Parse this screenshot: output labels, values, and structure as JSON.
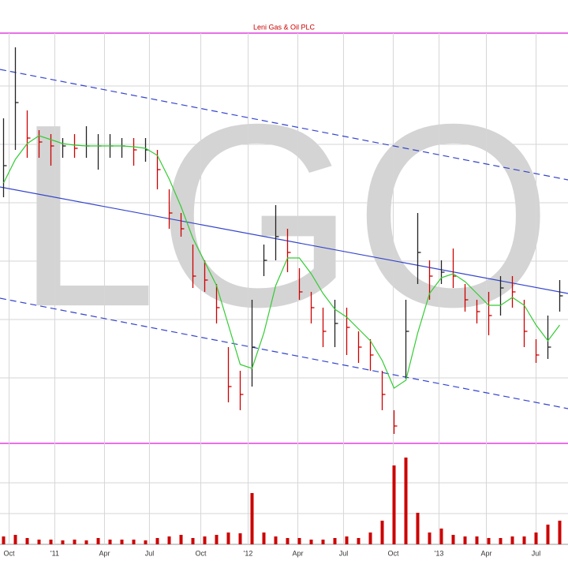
{
  "chart_data": {
    "type": "ohlc",
    "title": "Leni Gas & Oil PLC",
    "watermark": "LGO",
    "xlim": [
      -0.3,
      47.7
    ],
    "xticks": [
      {
        "value": 0.47,
        "label": "Oct"
      },
      {
        "value": 4.33,
        "label": "'11"
      },
      {
        "value": 8.53,
        "label": "Apr"
      },
      {
        "value": 12.33,
        "label": "Jul"
      },
      {
        "value": 16.67,
        "label": "Oct"
      },
      {
        "value": 20.67,
        "label": "'12"
      },
      {
        "value": 24.87,
        "label": "Apr"
      },
      {
        "value": 28.73,
        "label": "Jul"
      },
      {
        "value": 32.93,
        "label": "Oct"
      },
      {
        "value": 36.8,
        "label": "'13"
      },
      {
        "value": 40.8,
        "label": "Apr"
      },
      {
        "value": 45,
        "label": "Jul"
      }
    ],
    "ylim": [
      0,
      520
    ],
    "high": [
      412,
      502,
      422,
      397,
      392,
      387,
      392,
      402,
      392,
      392,
      387,
      387,
      387,
      372,
      322,
      292,
      252,
      232,
      202,
      122,
      92,
      182,
      252,
      302,
      272,
      222,
      192,
      172,
      182,
      172,
      142,
      132,
      92,
      42,
      182,
      292,
      232,
      232,
      247,
      202,
      182,
      192,
      212,
      212,
      182,
      132,
      162,
      207
    ],
    "low": [
      312,
      372,
      362,
      362,
      352,
      362,
      362,
      362,
      347,
      362,
      362,
      352,
      357,
      322,
      272,
      262,
      197,
      192,
      152,
      52,
      42,
      72,
      212,
      232,
      217,
      182,
      152,
      122,
      122,
      112,
      102,
      92,
      42,
      12,
      82,
      202,
      182,
      202,
      197,
      167,
      152,
      137,
      162,
      172,
      122,
      102,
      107,
      167
    ],
    "close": [
      352,
      432,
      387,
      382,
      377,
      377,
      374,
      377,
      377,
      377,
      377,
      372,
      372,
      347,
      292,
      272,
      212,
      207,
      172,
      72,
      62,
      122,
      232,
      262,
      242,
      192,
      172,
      142,
      152,
      147,
      122,
      112,
      62,
      22,
      142,
      242,
      212,
      217,
      212,
      182,
      167,
      162,
      197,
      192,
      142,
      112,
      122,
      187
    ],
    "moving_average": {
      "color": "#33cc33",
      "values": [
        330,
        360,
        380,
        390,
        385,
        380,
        378,
        377,
        377,
        377,
        377,
        376,
        374,
        365,
        335,
        300,
        260,
        230,
        200,
        150,
        100,
        95,
        140,
        200,
        235,
        235,
        215,
        190,
        170,
        160,
        145,
        130,
        105,
        70,
        80,
        140,
        190,
        210,
        215,
        205,
        190,
        175,
        175,
        185,
        175,
        150,
        130,
        150
      ]
    },
    "trendlines": [
      {
        "values": [
          474,
          334
        ],
        "color": "#3344cc",
        "dashed": true
      },
      {
        "values": [
          325,
          190
        ],
        "color": "#3344cc",
        "dashed": false
      },
      {
        "values": [
          184,
          44
        ],
        "color": "#3344cc",
        "dashed": true
      }
    ],
    "volume": {
      "color": "#cc0000",
      "ylim": [
        0,
        128
      ],
      "values": [
        10,
        12,
        8,
        6,
        6,
        5,
        6,
        5,
        8,
        6,
        6,
        6,
        5,
        8,
        10,
        12,
        8,
        10,
        12,
        15,
        14,
        65,
        15,
        10,
        8,
        8,
        6,
        6,
        8,
        10,
        8,
        15,
        30,
        100,
        110,
        40,
        15,
        20,
        12,
        10,
        10,
        8,
        8,
        10,
        10,
        15,
        25,
        30
      ]
    },
    "up_color": "#222222",
    "down_color": "#cc0000"
  }
}
